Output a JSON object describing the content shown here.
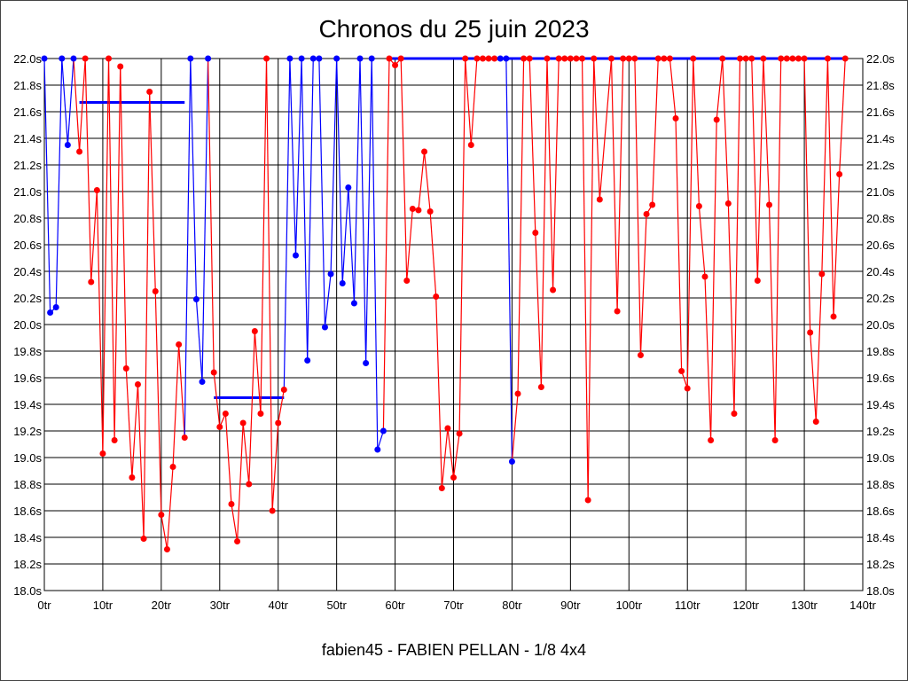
{
  "chart_data": {
    "type": "line",
    "title": "Chronos du 25 juin 2023",
    "subtitle": "fabien45 - FABIEN PELLAN - 1/8 4x4",
    "xlabel": "",
    "ylabel": "",
    "xlim": [
      0,
      140
    ],
    "ylim": [
      18.0,
      22.0
    ],
    "grid": true,
    "x_ticks": [
      "0tr",
      "10tr",
      "20tr",
      "30tr",
      "40tr",
      "50tr",
      "60tr",
      "70tr",
      "80tr",
      "90tr",
      "100tr",
      "110tr",
      "120tr",
      "130tr",
      "140tr"
    ],
    "y_ticks": [
      "18.0s",
      "18.2s",
      "18.4s",
      "18.6s",
      "18.8s",
      "19.0s",
      "19.2s",
      "19.4s",
      "19.6s",
      "19.8s",
      "20.0s",
      "20.2s",
      "20.4s",
      "20.6s",
      "20.8s",
      "21.0s",
      "21.2s",
      "21.4s",
      "21.6s",
      "21.8s",
      "22.0s"
    ],
    "colors": {
      "blue": "#0000ff",
      "red": "#ff0000"
    },
    "points": [
      [
        0,
        22,
        "b"
      ],
      [
        1,
        20.09,
        "b"
      ],
      [
        2,
        20.13,
        "b"
      ],
      [
        3,
        22,
        "b"
      ],
      [
        4,
        21.35,
        "b"
      ],
      [
        5,
        22,
        "b"
      ],
      [
        6,
        21.3,
        "r"
      ],
      [
        7,
        22,
        "r"
      ],
      [
        8,
        20.32,
        "r"
      ],
      [
        9,
        21.01,
        "r"
      ],
      [
        10,
        19.03,
        "r"
      ],
      [
        11,
        22,
        "r"
      ],
      [
        12,
        19.13,
        "r"
      ],
      [
        13,
        21.94,
        "r"
      ],
      [
        14,
        19.67,
        "r"
      ],
      [
        15,
        18.85,
        "r"
      ],
      [
        16,
        19.55,
        "r"
      ],
      [
        17,
        18.39,
        "r"
      ],
      [
        18,
        21.75,
        "r"
      ],
      [
        19,
        20.25,
        "r"
      ],
      [
        20,
        18.57,
        "r"
      ],
      [
        21,
        18.31,
        "r"
      ],
      [
        22,
        18.93,
        "r"
      ],
      [
        23,
        19.85,
        "r"
      ],
      [
        24,
        19.15,
        "r"
      ],
      [
        25,
        22,
        "b"
      ],
      [
        26,
        20.19,
        "b"
      ],
      [
        27,
        19.57,
        "b"
      ],
      [
        28,
        22,
        "b"
      ],
      [
        29,
        19.64,
        "r"
      ],
      [
        30,
        19.23,
        "r"
      ],
      [
        31,
        19.33,
        "r"
      ],
      [
        32,
        18.65,
        "r"
      ],
      [
        33,
        18.37,
        "r"
      ],
      [
        34,
        19.26,
        "r"
      ],
      [
        35,
        18.8,
        "r"
      ],
      [
        36,
        19.95,
        "r"
      ],
      [
        37,
        19.33,
        "r"
      ],
      [
        38,
        22,
        "r"
      ],
      [
        39,
        18.6,
        "r"
      ],
      [
        40,
        19.26,
        "r"
      ],
      [
        41,
        19.51,
        "r"
      ],
      [
        42,
        22,
        "b"
      ],
      [
        43,
        20.52,
        "b"
      ],
      [
        44,
        22,
        "b"
      ],
      [
        45,
        19.73,
        "b"
      ],
      [
        46,
        22,
        "b"
      ],
      [
        47,
        22,
        "b"
      ],
      [
        48,
        19.98,
        "b"
      ],
      [
        49,
        20.38,
        "b"
      ],
      [
        50,
        22,
        "b"
      ],
      [
        51,
        20.31,
        "b"
      ],
      [
        52,
        21.03,
        "b"
      ],
      [
        53,
        20.16,
        "b"
      ],
      [
        54,
        22,
        "b"
      ],
      [
        55,
        19.71,
        "b"
      ],
      [
        56,
        22,
        "b"
      ],
      [
        57,
        19.06,
        "b"
      ],
      [
        58,
        19.2,
        "b"
      ],
      [
        59,
        22,
        "r"
      ],
      [
        60,
        21.95,
        "r"
      ],
      [
        61,
        22,
        "r"
      ],
      [
        62,
        20.33,
        "r"
      ],
      [
        63,
        20.87,
        "r"
      ],
      [
        64,
        20.86,
        "r"
      ],
      [
        65,
        21.3,
        "r"
      ],
      [
        66,
        20.85,
        "r"
      ],
      [
        67,
        20.21,
        "r"
      ],
      [
        68,
        18.77,
        "r"
      ],
      [
        69,
        19.22,
        "r"
      ],
      [
        70,
        18.85,
        "r"
      ],
      [
        71,
        19.18,
        "r"
      ],
      [
        72,
        22,
        "r"
      ],
      [
        73,
        21.35,
        "r"
      ],
      [
        74,
        22,
        "r"
      ],
      [
        75,
        22,
        "r"
      ],
      [
        76,
        22,
        "r"
      ],
      [
        77,
        22,
        "r"
      ],
      [
        78,
        22,
        "b"
      ],
      [
        79,
        22,
        "b"
      ],
      [
        80,
        18.97,
        "b"
      ],
      [
        81,
        19.48,
        "r"
      ],
      [
        82,
        22,
        "r"
      ],
      [
        83,
        22,
        "r"
      ],
      [
        84,
        20.69,
        "r"
      ],
      [
        85,
        19.53,
        "r"
      ],
      [
        86,
        22,
        "r"
      ],
      [
        87,
        20.26,
        "r"
      ],
      [
        88,
        22,
        "r"
      ],
      [
        89,
        22,
        "r"
      ],
      [
        90,
        22,
        "r"
      ],
      [
        91,
        22,
        "r"
      ],
      [
        92,
        22,
        "r"
      ],
      [
        93,
        18.68,
        "r"
      ],
      [
        94,
        22,
        "r"
      ],
      [
        95,
        20.94,
        "r"
      ],
      [
        97,
        22,
        "r"
      ],
      [
        98,
        20.1,
        "r"
      ],
      [
        99,
        22,
        "r"
      ],
      [
        100,
        22,
        "r"
      ],
      [
        101,
        22,
        "r"
      ],
      [
        102,
        19.77,
        "r"
      ],
      [
        103,
        20.83,
        "r"
      ],
      [
        104,
        20.9,
        "r"
      ],
      [
        105,
        22,
        "r"
      ],
      [
        106,
        22,
        "r"
      ],
      [
        107,
        22,
        "r"
      ],
      [
        108,
        21.55,
        "r"
      ],
      [
        109,
        19.65,
        "r"
      ],
      [
        110,
        19.52,
        "r"
      ],
      [
        111,
        22,
        "r"
      ],
      [
        112,
        20.89,
        "r"
      ],
      [
        113,
        20.36,
        "r"
      ],
      [
        114,
        19.13,
        "r"
      ],
      [
        115,
        21.54,
        "r"
      ],
      [
        116,
        22,
        "r"
      ],
      [
        117,
        20.91,
        "r"
      ],
      [
        118,
        19.33,
        "r"
      ],
      [
        119,
        22,
        "r"
      ],
      [
        120,
        22,
        "r"
      ],
      [
        121,
        22,
        "r"
      ],
      [
        122,
        20.33,
        "r"
      ],
      [
        123,
        22,
        "r"
      ],
      [
        124,
        20.9,
        "r"
      ],
      [
        125,
        19.13,
        "r"
      ],
      [
        126,
        22,
        "r"
      ],
      [
        127,
        22,
        "r"
      ],
      [
        128,
        22,
        "r"
      ],
      [
        129,
        22,
        "r"
      ],
      [
        130,
        22,
        "r"
      ],
      [
        131,
        19.94,
        "r"
      ],
      [
        132,
        19.27,
        "r"
      ],
      [
        133,
        20.38,
        "r"
      ],
      [
        134,
        22,
        "r"
      ],
      [
        135,
        20.06,
        "r"
      ],
      [
        136,
        21.13,
        "r"
      ],
      [
        137,
        22,
        "r"
      ]
    ],
    "reference_lines": [
      {
        "x": [
          6,
          24
        ],
        "y": 21.67,
        "color": "#0000ff"
      },
      {
        "x": [
          29,
          41
        ],
        "y": 19.45,
        "color": "#0000ff"
      },
      {
        "x": [
          59,
          137
        ],
        "y": 22.0,
        "color": "#0000ff"
      }
    ]
  }
}
